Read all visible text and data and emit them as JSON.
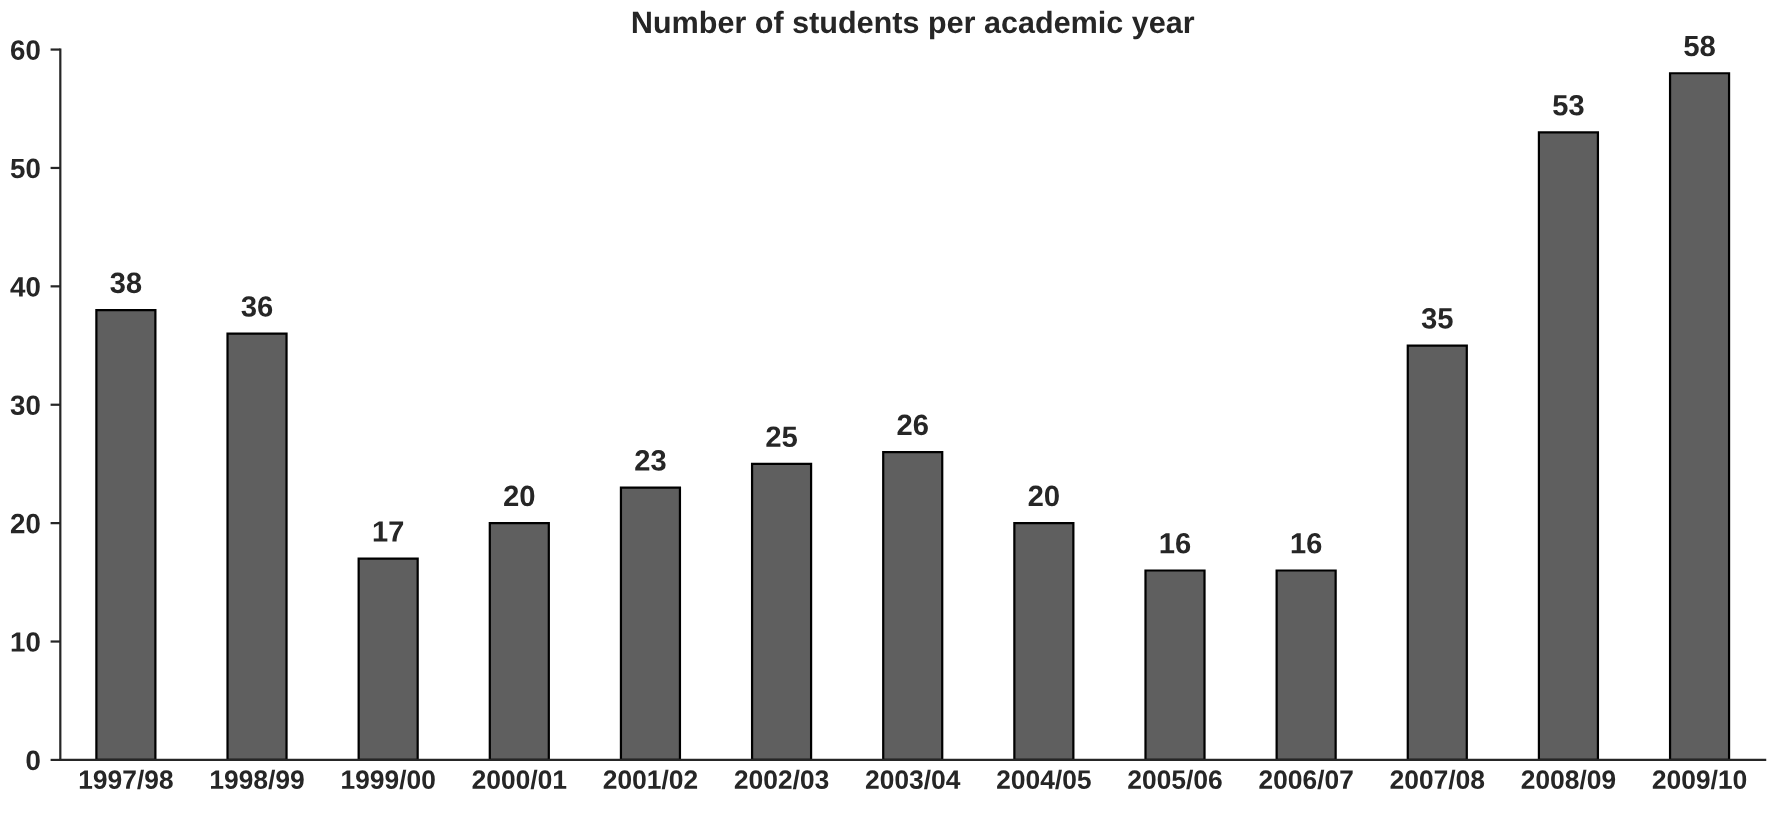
{
  "chart_data": {
    "type": "bar",
    "title": "Number of students per academic year",
    "categories": [
      "1997/98",
      "1998/99",
      "1999/00",
      "2000/01",
      "2001/02",
      "2002/03",
      "2003/04",
      "2004/05",
      "2005/06",
      "2006/07",
      "2007/08",
      "2008/09",
      "2009/10"
    ],
    "values": [
      38,
      36,
      17,
      20,
      23,
      25,
      26,
      20,
      16,
      16,
      35,
      53,
      58
    ],
    "color": "#5f5f5f",
    "ylim": [
      0,
      60
    ],
    "yticks": [
      0,
      10,
      20,
      30,
      40,
      50,
      60
    ],
    "data_labels": true,
    "grid": false,
    "legend": false
  }
}
